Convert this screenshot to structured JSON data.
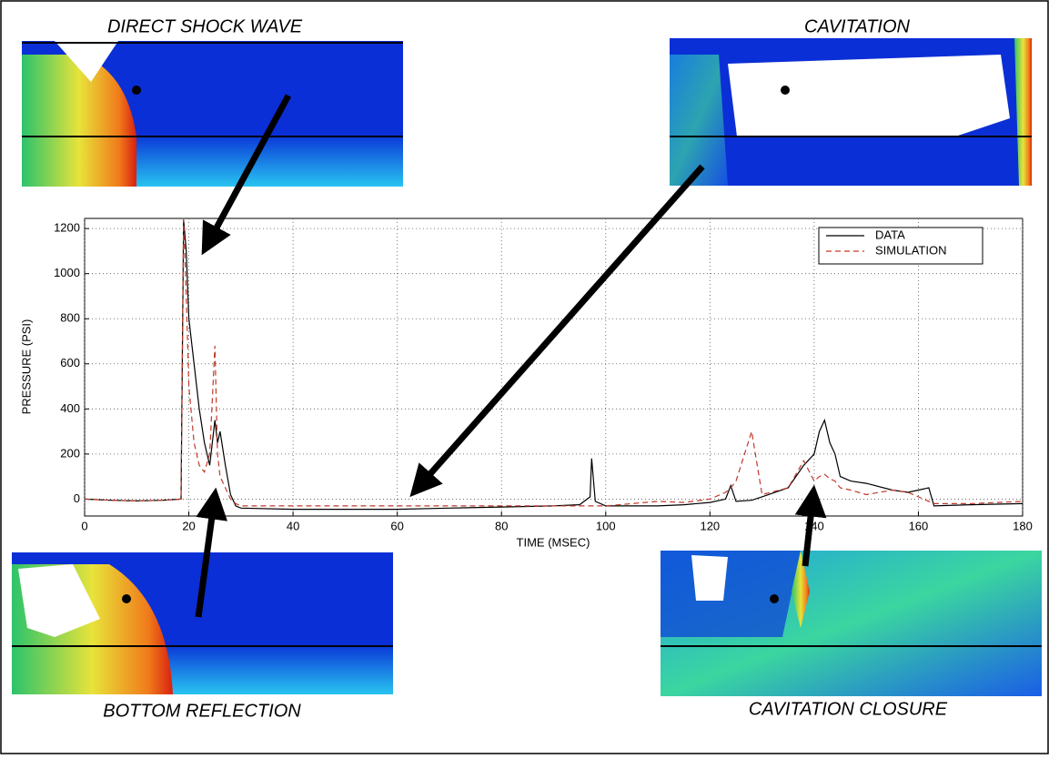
{
  "chart_data": {
    "type": "line",
    "xlabel": "TIME (MSEC)",
    "ylabel": "PRESSURE (PSI)",
    "xlim": [
      0,
      180
    ],
    "ylim": [
      -75,
      1245
    ],
    "xticks": [
      0,
      20,
      40,
      60,
      80,
      100,
      120,
      140,
      160,
      180
    ],
    "yticks": [
      0,
      200,
      400,
      600,
      800,
      1000,
      1200
    ],
    "grid": true,
    "legend": "top-right",
    "x": [
      0,
      5,
      10,
      15,
      18.5,
      19,
      19.5,
      20,
      21,
      22,
      23,
      24,
      25,
      25.5,
      26,
      27,
      28,
      29,
      30,
      40,
      50,
      60,
      70,
      80,
      90,
      95,
      97,
      97.3,
      98,
      100,
      110,
      115,
      120,
      123,
      124,
      125,
      128,
      130,
      135,
      138,
      140,
      141,
      142,
      143,
      144,
      145,
      147,
      150,
      155,
      158,
      160,
      162,
      163,
      170,
      180
    ],
    "series": [
      {
        "name": "DATA",
        "color": "#000000",
        "dash": "solid",
        "values": [
          0,
          -5,
          -8,
          -5,
          0,
          1240,
          1100,
          800,
          600,
          400,
          250,
          150,
          350,
          250,
          300,
          150,
          20,
          -30,
          -40,
          -45,
          -45,
          -45,
          -40,
          -35,
          -30,
          -25,
          10,
          180,
          -10,
          -30,
          -30,
          -25,
          -15,
          0,
          60,
          -10,
          -5,
          10,
          50,
          150,
          200,
          300,
          350,
          250,
          200,
          100,
          80,
          70,
          40,
          30,
          40,
          50,
          -30,
          -25,
          -20
        ]
      },
      {
        "name": "SIMULATION",
        "color": "#c0392b",
        "dash": "dashed",
        "values": [
          0,
          -5,
          -8,
          -5,
          0,
          1240,
          900,
          500,
          250,
          150,
          120,
          200,
          680,
          200,
          100,
          50,
          0,
          -20,
          -30,
          -30,
          -30,
          -30,
          -30,
          -30,
          -30,
          -30,
          -30,
          -30,
          -30,
          -30,
          -10,
          -15,
          0,
          30,
          50,
          80,
          300,
          20,
          50,
          170,
          80,
          100,
          110,
          90,
          80,
          50,
          40,
          20,
          40,
          30,
          10,
          -10,
          -20,
          -20,
          -10
        ]
      }
    ],
    "annotations": [
      {
        "text": "DIRECT SHOCK WAVE"
      },
      {
        "text": "CAVITATION"
      },
      {
        "text": "BOTTOM REFLECTION"
      },
      {
        "text": "CAVITATION CLOSURE"
      }
    ]
  }
}
